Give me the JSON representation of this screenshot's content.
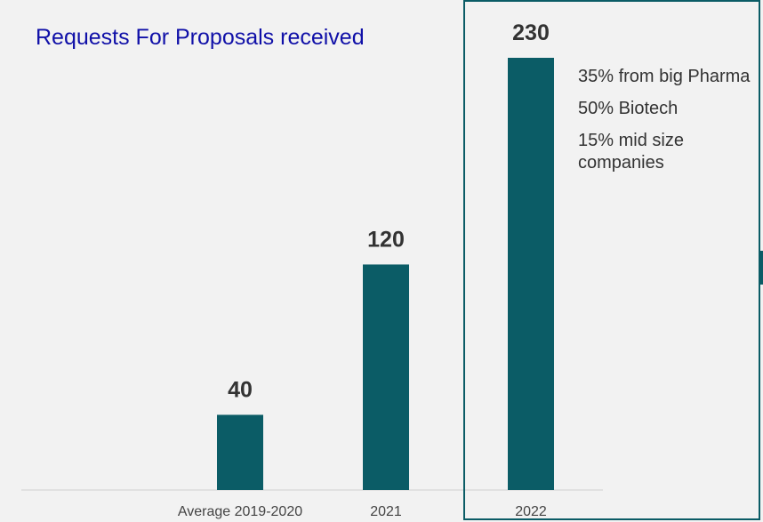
{
  "chart_data": {
    "type": "bar",
    "title": "Requests For Proposals received",
    "categories": [
      "Average 2019-2020",
      "2021",
      "2022"
    ],
    "values": [
      40,
      120,
      230
    ],
    "data_labels": [
      "40",
      "120",
      "230"
    ],
    "xlabel": "",
    "ylabel": "",
    "ylim": [
      0,
      240
    ],
    "grid": false,
    "bar_color": "#0b5c66",
    "annotations": [
      "35% from big Pharma",
      "50% Biotech",
      "15% mid size companies"
    ],
    "highlight": "2022"
  },
  "colors": {
    "title": "#1010a8",
    "bar": "#0b5c66",
    "text": "#333333",
    "background": "#f2f2f2"
  }
}
